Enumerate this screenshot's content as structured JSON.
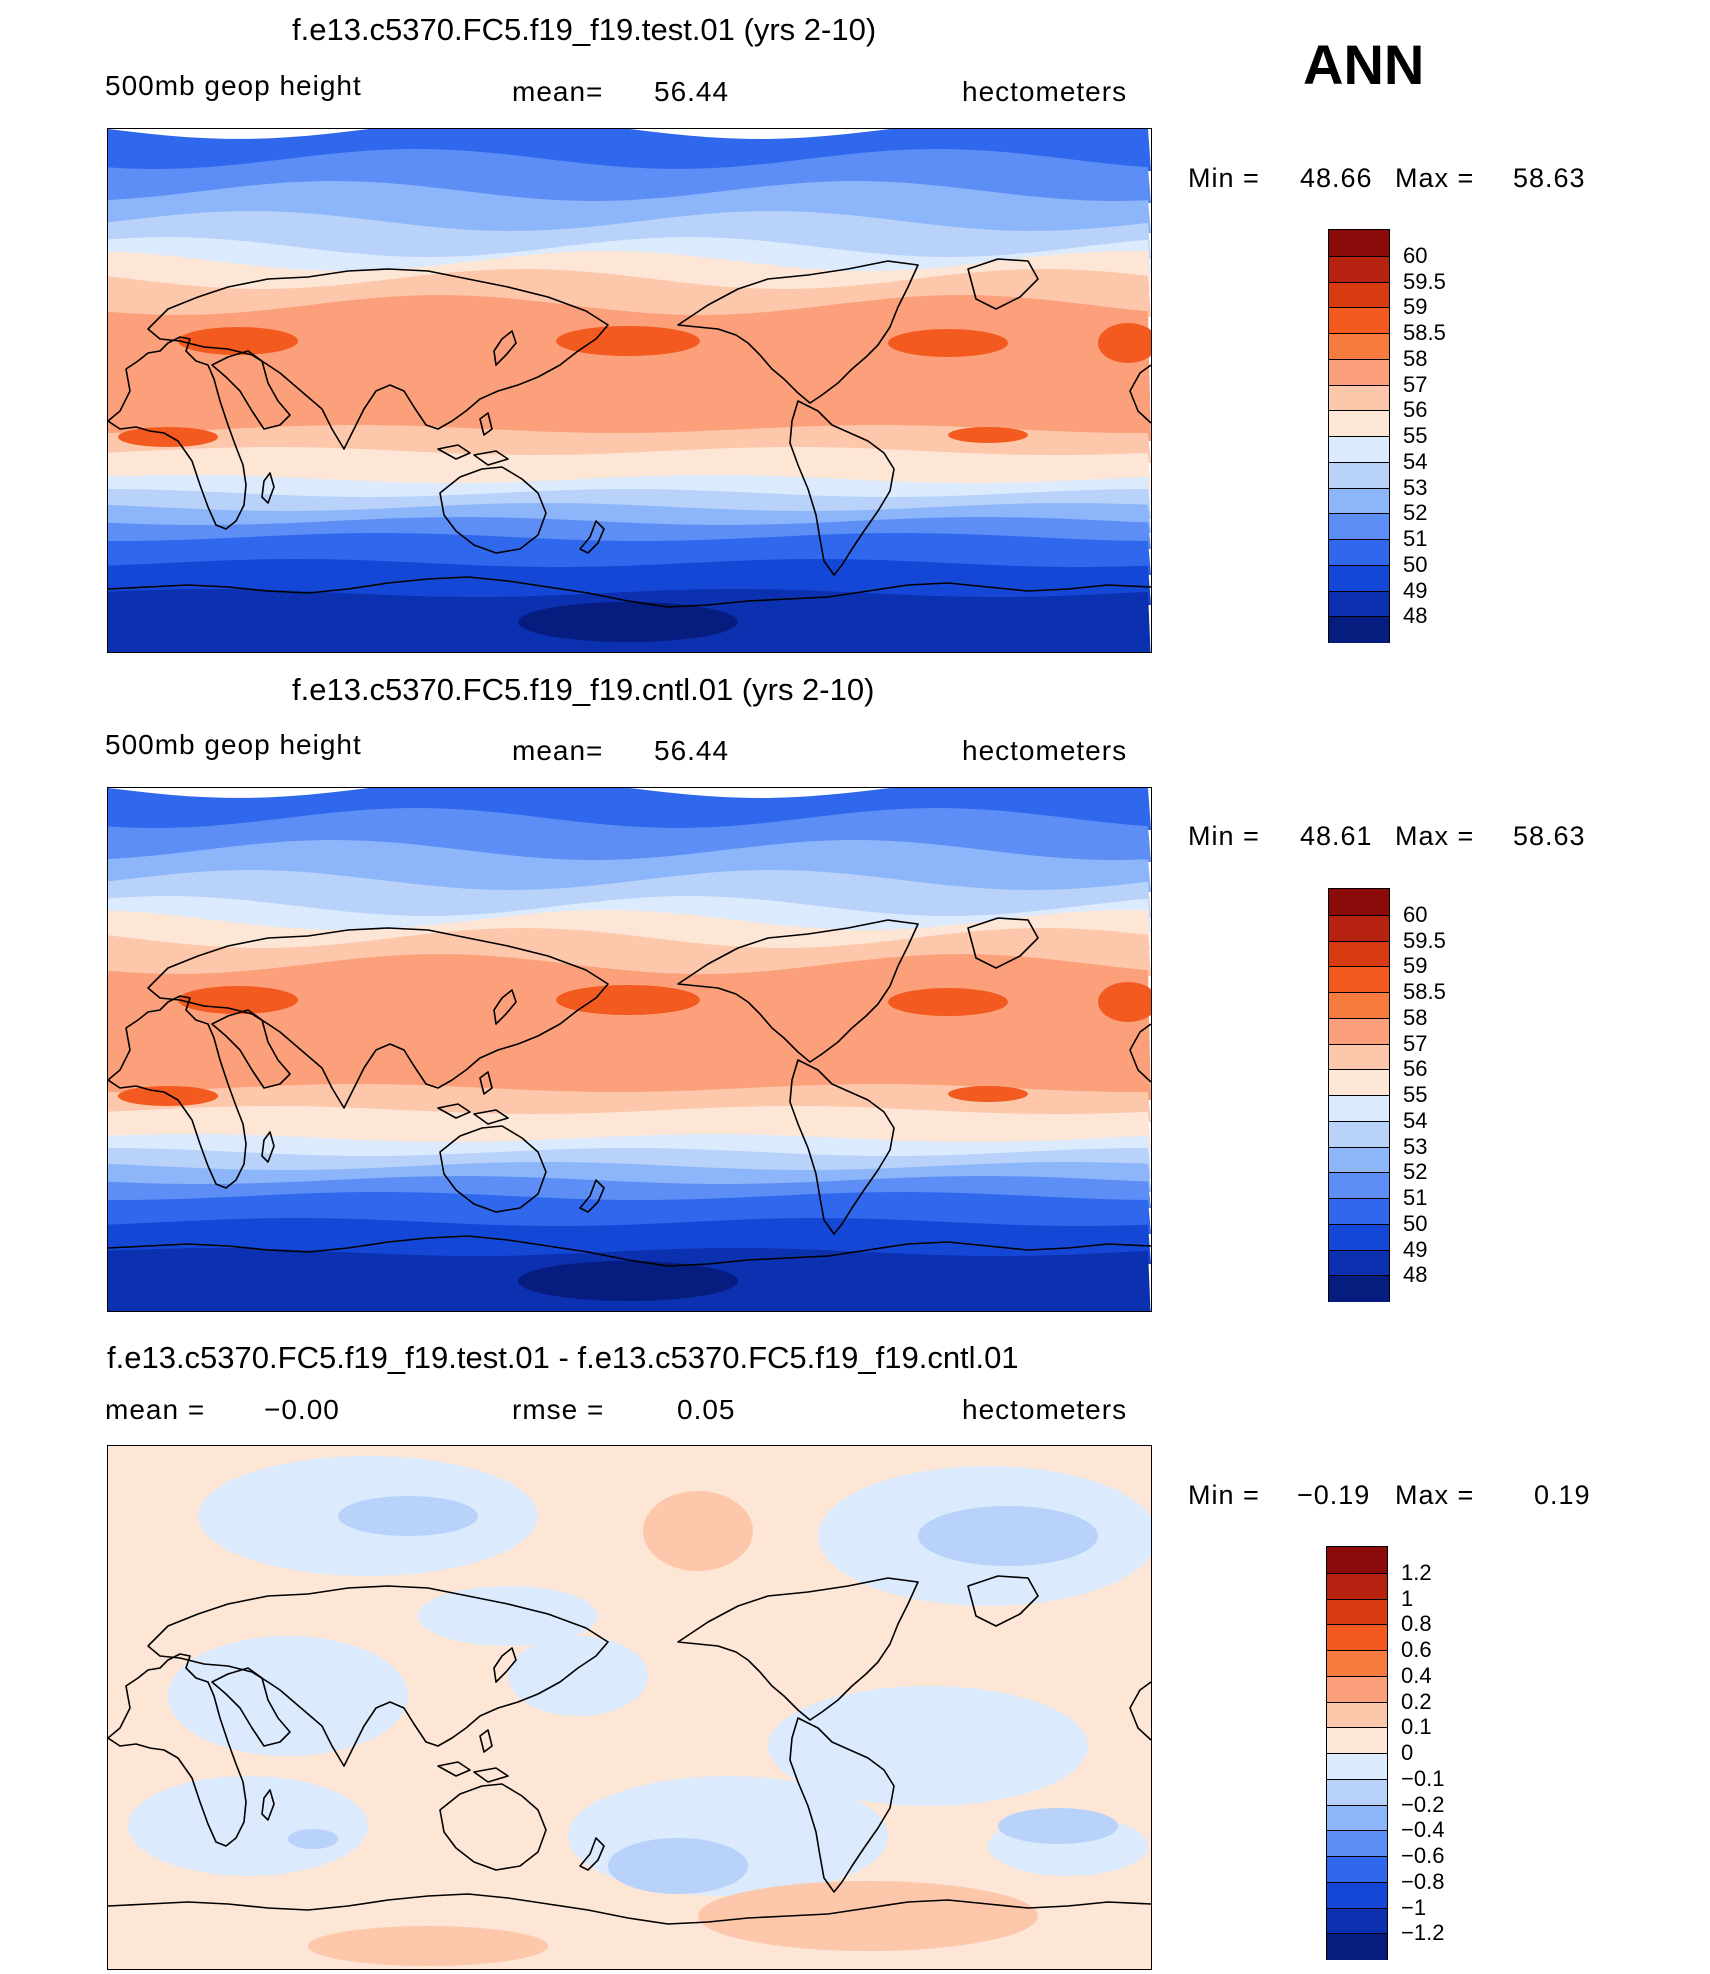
{
  "ann_label": "ANN",
  "panels": [
    {
      "title": "f.e13.c5370.FC5.f19_f19.test.01 (yrs 2-10)",
      "variable": "500mb geop height",
      "mean_label": "mean=",
      "mean_value": "56.44",
      "units": "hectometers",
      "min_label": "Min =",
      "min_value": "48.66",
      "max_label": "Max =",
      "max_value": "58.63",
      "legend_labels": [
        "60",
        "59.5",
        "59",
        "58.5",
        "58",
        "57",
        "56",
        "55",
        "54",
        "53",
        "52",
        "51",
        "50",
        "49",
        "48"
      ],
      "legend_colors": [
        "#8b0a0a",
        "#b52210",
        "#d83a12",
        "#f25a20",
        "#f77a3e",
        "#fba07a",
        "#fcc7ab",
        "#fde6d6",
        "#dbeafc",
        "#b8d2fa",
        "#8db6fa",
        "#5d8ef5",
        "#2f68ec",
        "#1547d6",
        "#0b30b0",
        "#061c7e"
      ],
      "map_kind": "height"
    },
    {
      "title": "f.e13.c5370.FC5.f19_f19.cntl.01 (yrs 2-10)",
      "variable": "500mb geop height",
      "mean_label": "mean=",
      "mean_value": "56.44",
      "units": "hectometers",
      "min_label": "Min =",
      "min_value": "48.61",
      "max_label": "Max =",
      "max_value": "58.63",
      "legend_labels": [
        "60",
        "59.5",
        "59",
        "58.5",
        "58",
        "57",
        "56",
        "55",
        "54",
        "53",
        "52",
        "51",
        "50",
        "49",
        "48"
      ],
      "legend_colors": [
        "#8b0a0a",
        "#b52210",
        "#d83a12",
        "#f25a20",
        "#f77a3e",
        "#fba07a",
        "#fcc7ab",
        "#fde6d6",
        "#dbeafc",
        "#b8d2fa",
        "#8db6fa",
        "#5d8ef5",
        "#2f68ec",
        "#1547d6",
        "#0b30b0",
        "#061c7e"
      ],
      "map_kind": "height"
    },
    {
      "title": "f.e13.c5370.FC5.f19_f19.test.01 - f.e13.c5370.FC5.f19_f19.cntl.01",
      "variable": "mean =",
      "mean_label": "rmse =",
      "mean_value": "0.05",
      "variable_value": "−0.00",
      "units": "hectometers",
      "min_label": "Min =",
      "min_value": "−0.19",
      "max_label": "Max =",
      "max_value": "0.19",
      "legend_labels": [
        "1.2",
        "1",
        "0.8",
        "0.6",
        "0.4",
        "0.2",
        "0.1",
        "0",
        "−0.1",
        "−0.2",
        "−0.4",
        "−0.6",
        "−0.8",
        "−1",
        "−1.2"
      ],
      "legend_colors": [
        "#8b0a0a",
        "#b52210",
        "#d83a12",
        "#f25a20",
        "#f77a3e",
        "#fba07a",
        "#fcc7ab",
        "#fde6d6",
        "#dbeafc",
        "#b8d2fa",
        "#8db6fa",
        "#5d8ef5",
        "#2f68ec",
        "#1547d6",
        "#0b30b0",
        "#061c7e"
      ],
      "map_kind": "diff"
    }
  ]
}
